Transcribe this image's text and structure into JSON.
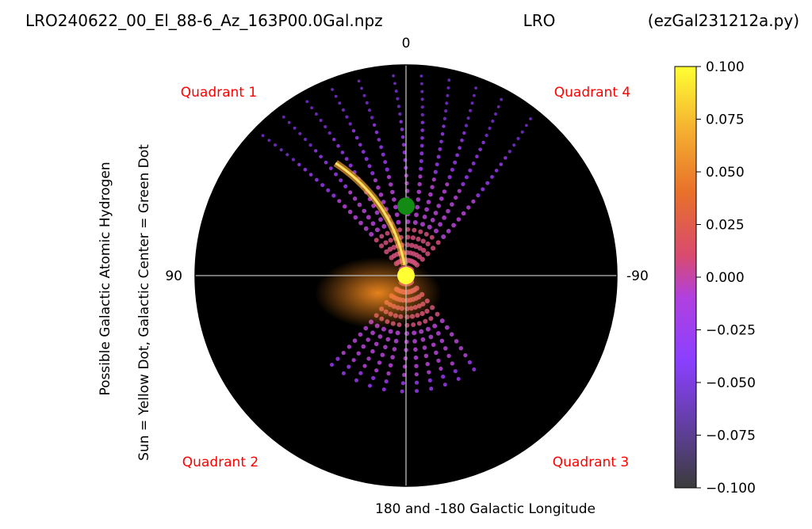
{
  "header": {
    "filename": "LRO240622_00_El_88-6_Az_163P00.0Gal.npz",
    "station": "LRO",
    "script": "(ezGal231212a.py)"
  },
  "colors": {
    "quadrant_text": "#ff0000",
    "disk_background": "#000000",
    "sun_dot": "#ffff33",
    "galactic_center_dot": "#138a13",
    "axis_lines": "#bbbbbb"
  },
  "chart_data": {
    "type": "heatmap",
    "projection": "polar",
    "title": "",
    "angle_labels": {
      "top": "0",
      "left": "90",
      "right": "-90"
    },
    "xlabel": "180 and -180 Galactic Longitude",
    "ylabel_lines": [
      "Possible Galactic Atomic Hydrogen",
      "Sun = Yellow Dot, Galactic Center = Green Dot"
    ],
    "quadrants": [
      {
        "name": "Quadrant 1",
        "corner": "top-left"
      },
      {
        "name": "Quadrant 4",
        "corner": "top-right"
      },
      {
        "name": "Quadrant 2",
        "corner": "bottom-left"
      },
      {
        "name": "Quadrant 3",
        "corner": "bottom-right"
      }
    ],
    "markers": [
      {
        "name": "Sun",
        "color": "yellow",
        "longitude_deg": 0,
        "radius_frac": 0.0
      },
      {
        "name": "Galactic Center",
        "color": "green",
        "longitude_deg": 0,
        "radius_frac": 0.33
      }
    ],
    "colorbar": {
      "colormap": "gnuplot2-like",
      "range": [
        -0.1,
        0.1
      ],
      "ticks": [
        "0.100",
        "0.075",
        "0.050",
        "0.025",
        "0.000",
        "−0.025",
        "−0.050",
        "−0.075",
        "−0.100"
      ]
    },
    "emission_arm_longitudes_deg": [
      38,
      30,
      22,
      14,
      6,
      -4,
      -12,
      -20,
      -28,
      -36,
      -46
    ]
  }
}
